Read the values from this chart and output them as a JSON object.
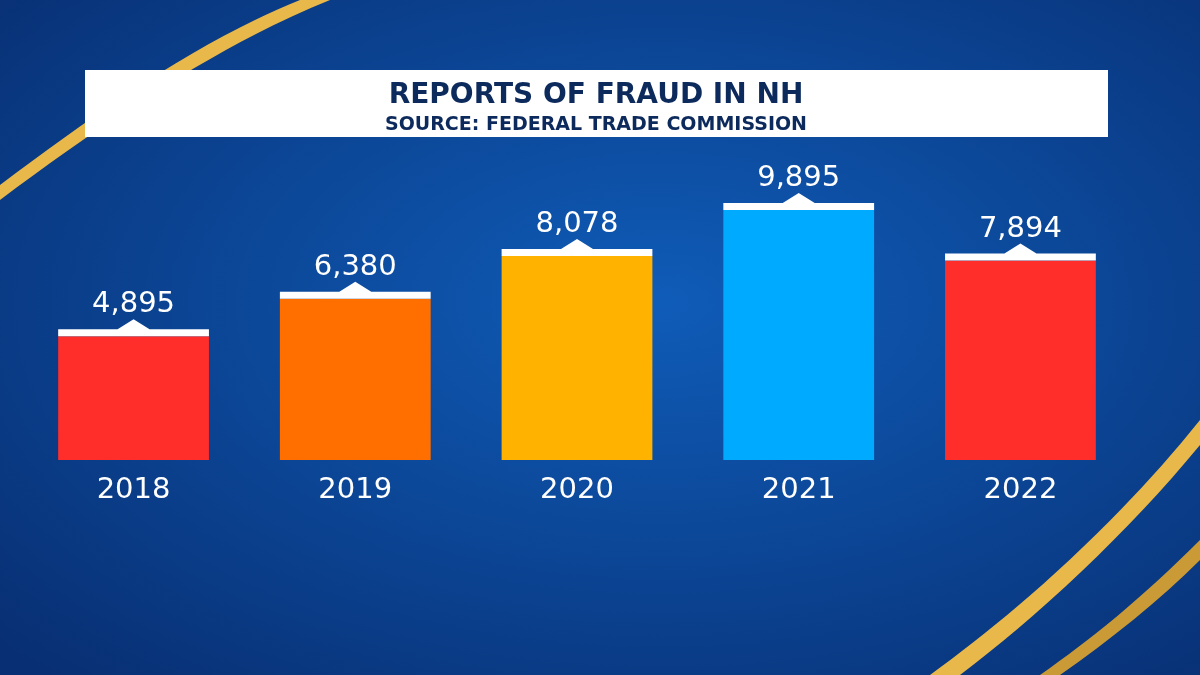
{
  "chart_data": {
    "type": "bar",
    "title": "REPORTS OF FRAUD IN NH",
    "subtitle": "SOURCE: FEDERAL TRADE COMMISSION",
    "categories": [
      "2018",
      "2019",
      "2020",
      "2021",
      "2022"
    ],
    "values": [
      4895,
      6380,
      8078,
      9895,
      7894
    ],
    "colors": [
      "#ff2e2a",
      "#ff6f00",
      "#ffb300",
      "#00aaff",
      "#ff2e2a"
    ],
    "value_labels": [
      "4,895",
      "6,380",
      "8,078",
      "9,895",
      "7,894"
    ]
  }
}
